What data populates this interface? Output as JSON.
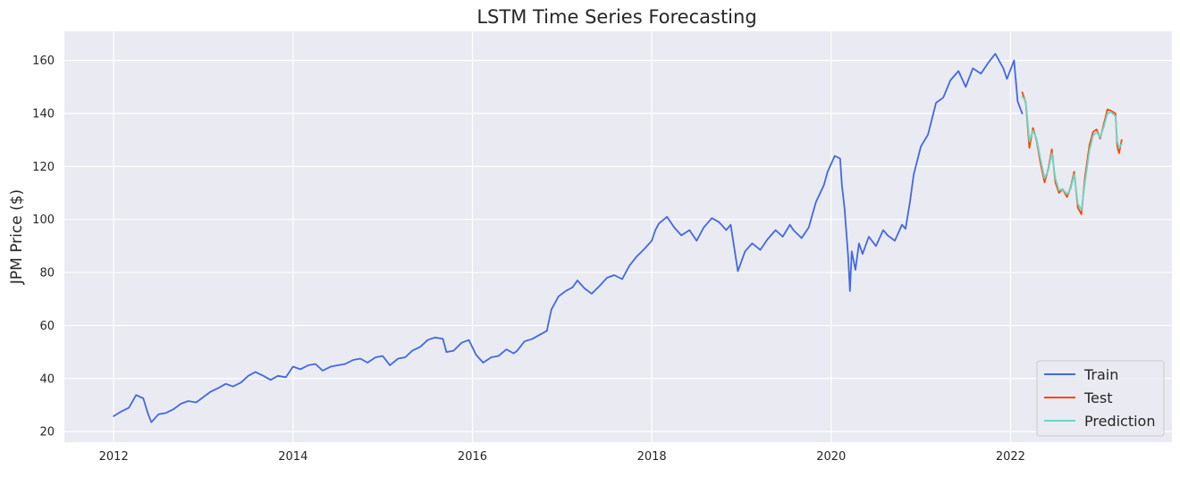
{
  "chart_data": {
    "type": "line",
    "title": "LSTM Time Series Forecasting",
    "xlabel": "",
    "ylabel": "JPM Price ($)",
    "xlim": [
      2011.45,
      2023.8
    ],
    "ylim": [
      16,
      171
    ],
    "x_ticks": [
      2012,
      2014,
      2016,
      2018,
      2020,
      2022
    ],
    "x_tick_labels": [
      "2012",
      "2014",
      "2016",
      "2018",
      "2020",
      "2022"
    ],
    "y_ticks": [
      20,
      40,
      60,
      80,
      100,
      120,
      140,
      160
    ],
    "y_tick_labels": [
      "20",
      "40",
      "60",
      "80",
      "100",
      "120",
      "140",
      "160"
    ],
    "grid": true,
    "legend_position": "lower-right",
    "series": [
      {
        "name": "Train",
        "color": "#4169e1",
        "points": [
          [
            2012.0,
            25.8
          ],
          [
            2012.08,
            27.5
          ],
          [
            2012.17,
            29.0
          ],
          [
            2012.25,
            33.8
          ],
          [
            2012.33,
            32.5
          ],
          [
            2012.38,
            27.0
          ],
          [
            2012.42,
            23.5
          ],
          [
            2012.5,
            26.5
          ],
          [
            2012.58,
            27.0
          ],
          [
            2012.67,
            28.5
          ],
          [
            2012.75,
            30.5
          ],
          [
            2012.83,
            31.5
          ],
          [
            2012.92,
            31.0
          ],
          [
            2013.0,
            33.0
          ],
          [
            2013.08,
            35.0
          ],
          [
            2013.17,
            36.5
          ],
          [
            2013.25,
            38.0
          ],
          [
            2013.33,
            37.0
          ],
          [
            2013.42,
            38.5
          ],
          [
            2013.5,
            41.0
          ],
          [
            2013.58,
            42.5
          ],
          [
            2013.67,
            41.0
          ],
          [
            2013.75,
            39.5
          ],
          [
            2013.83,
            41.0
          ],
          [
            2013.92,
            40.5
          ],
          [
            2014.0,
            44.5
          ],
          [
            2014.08,
            43.5
          ],
          [
            2014.17,
            45.0
          ],
          [
            2014.25,
            45.5
          ],
          [
            2014.33,
            43.0
          ],
          [
            2014.42,
            44.5
          ],
          [
            2014.5,
            45.0
          ],
          [
            2014.58,
            45.5
          ],
          [
            2014.67,
            47.0
          ],
          [
            2014.75,
            47.5
          ],
          [
            2014.83,
            46.0
          ],
          [
            2014.92,
            48.0
          ],
          [
            2015.0,
            48.5
          ],
          [
            2015.08,
            45.0
          ],
          [
            2015.17,
            47.5
          ],
          [
            2015.25,
            48.0
          ],
          [
            2015.33,
            50.5
          ],
          [
            2015.42,
            52.0
          ],
          [
            2015.5,
            54.5
          ],
          [
            2015.58,
            55.5
          ],
          [
            2015.67,
            55.0
          ],
          [
            2015.71,
            50.0
          ],
          [
            2015.79,
            50.5
          ],
          [
            2015.88,
            53.5
          ],
          [
            2015.96,
            54.5
          ],
          [
            2016.04,
            49.0
          ],
          [
            2016.12,
            46.0
          ],
          [
            2016.21,
            48.0
          ],
          [
            2016.29,
            48.5
          ],
          [
            2016.38,
            51.0
          ],
          [
            2016.46,
            49.5
          ],
          [
            2016.5,
            50.5
          ],
          [
            2016.58,
            54.0
          ],
          [
            2016.67,
            55.0
          ],
          [
            2016.75,
            56.5
          ],
          [
            2016.83,
            58.0
          ],
          [
            2016.88,
            66.0
          ],
          [
            2016.96,
            71.0
          ],
          [
            2017.04,
            73.0
          ],
          [
            2017.12,
            74.5
          ],
          [
            2017.17,
            77.0
          ],
          [
            2017.25,
            74.0
          ],
          [
            2017.33,
            72.0
          ],
          [
            2017.42,
            75.0
          ],
          [
            2017.5,
            78.0
          ],
          [
            2017.58,
            79.0
          ],
          [
            2017.67,
            77.5
          ],
          [
            2017.75,
            82.5
          ],
          [
            2017.83,
            86.0
          ],
          [
            2017.92,
            89.0
          ],
          [
            2018.0,
            92.0
          ],
          [
            2018.04,
            96.0
          ],
          [
            2018.08,
            98.5
          ],
          [
            2018.17,
            101.0
          ],
          [
            2018.25,
            97.0
          ],
          [
            2018.33,
            94.0
          ],
          [
            2018.42,
            96.0
          ],
          [
            2018.5,
            92.0
          ],
          [
            2018.58,
            97.0
          ],
          [
            2018.67,
            100.5
          ],
          [
            2018.75,
            99.0
          ],
          [
            2018.83,
            96.0
          ],
          [
            2018.88,
            98.0
          ],
          [
            2018.96,
            80.5
          ],
          [
            2019.04,
            88.0
          ],
          [
            2019.12,
            91.0
          ],
          [
            2019.21,
            88.5
          ],
          [
            2019.29,
            92.5
          ],
          [
            2019.38,
            96.0
          ],
          [
            2019.46,
            93.5
          ],
          [
            2019.54,
            98.0
          ],
          [
            2019.58,
            96.0
          ],
          [
            2019.67,
            93.0
          ],
          [
            2019.75,
            97.0
          ],
          [
            2019.83,
            106.5
          ],
          [
            2019.92,
            113.0
          ],
          [
            2019.96,
            118.0
          ],
          [
            2020.04,
            124.0
          ],
          [
            2020.1,
            123.0
          ],
          [
            2020.12,
            113.0
          ],
          [
            2020.15,
            104.0
          ],
          [
            2020.19,
            86.0
          ],
          [
            2020.21,
            73.0
          ],
          [
            2020.23,
            88.0
          ],
          [
            2020.27,
            81.0
          ],
          [
            2020.31,
            91.0
          ],
          [
            2020.35,
            87.0
          ],
          [
            2020.42,
            93.5
          ],
          [
            2020.5,
            90.0
          ],
          [
            2020.58,
            96.0
          ],
          [
            2020.63,
            94.0
          ],
          [
            2020.71,
            92.0
          ],
          [
            2020.79,
            98.0
          ],
          [
            2020.83,
            96.5
          ],
          [
            2020.88,
            107.0
          ],
          [
            2020.92,
            117.0
          ],
          [
            2021.0,
            127.5
          ],
          [
            2021.08,
            132.0
          ],
          [
            2021.17,
            144.0
          ],
          [
            2021.25,
            146.0
          ],
          [
            2021.33,
            152.5
          ],
          [
            2021.42,
            156.0
          ],
          [
            2021.5,
            150.0
          ],
          [
            2021.58,
            157.0
          ],
          [
            2021.67,
            155.0
          ],
          [
            2021.75,
            159.0
          ],
          [
            2021.83,
            162.5
          ],
          [
            2021.92,
            157.0
          ],
          [
            2021.96,
            153.0
          ],
          [
            2022.04,
            160.0
          ],
          [
            2022.08,
            144.5
          ],
          [
            2022.13,
            140.0
          ]
        ]
      },
      {
        "name": "Test",
        "color": "#ff4500",
        "points": [
          [
            2022.13,
            148.0
          ],
          [
            2022.17,
            144.0
          ],
          [
            2022.21,
            127.0
          ],
          [
            2022.25,
            134.5
          ],
          [
            2022.29,
            130.0
          ],
          [
            2022.33,
            122.0
          ],
          [
            2022.38,
            114.0
          ],
          [
            2022.42,
            119.0
          ],
          [
            2022.46,
            126.5
          ],
          [
            2022.5,
            114.0
          ],
          [
            2022.54,
            110.0
          ],
          [
            2022.58,
            111.5
          ],
          [
            2022.63,
            108.5
          ],
          [
            2022.67,
            112.0
          ],
          [
            2022.71,
            118.0
          ],
          [
            2022.75,
            104.5
          ],
          [
            2022.79,
            102.0
          ],
          [
            2022.83,
            116.0
          ],
          [
            2022.88,
            128.0
          ],
          [
            2022.92,
            133.0
          ],
          [
            2022.96,
            134.0
          ],
          [
            2023.0,
            130.5
          ],
          [
            2023.04,
            136.0
          ],
          [
            2023.08,
            141.5
          ],
          [
            2023.12,
            141.0
          ],
          [
            2023.17,
            140.0
          ],
          [
            2023.19,
            127.5
          ],
          [
            2023.21,
            125.0
          ],
          [
            2023.24,
            130.0
          ]
        ]
      },
      {
        "name": "Prediction",
        "color": "#66d9c9",
        "points": [
          [
            2022.13,
            146.5
          ],
          [
            2022.17,
            144.5
          ],
          [
            2022.21,
            129.5
          ],
          [
            2022.25,
            133.5
          ],
          [
            2022.29,
            130.5
          ],
          [
            2022.33,
            123.5
          ],
          [
            2022.38,
            115.5
          ],
          [
            2022.42,
            118.5
          ],
          [
            2022.46,
            125.0
          ],
          [
            2022.5,
            115.5
          ],
          [
            2022.54,
            111.0
          ],
          [
            2022.58,
            111.5
          ],
          [
            2022.63,
            109.5
          ],
          [
            2022.67,
            111.5
          ],
          [
            2022.71,
            117.0
          ],
          [
            2022.75,
            106.0
          ],
          [
            2022.79,
            103.5
          ],
          [
            2022.83,
            114.0
          ],
          [
            2022.88,
            126.0
          ],
          [
            2022.92,
            131.5
          ],
          [
            2022.96,
            133.0
          ],
          [
            2023.0,
            131.0
          ],
          [
            2023.04,
            135.0
          ],
          [
            2023.08,
            140.0
          ],
          [
            2023.12,
            140.5
          ],
          [
            2023.17,
            139.0
          ],
          [
            2023.19,
            129.5
          ],
          [
            2023.21,
            127.0
          ],
          [
            2023.24,
            128.5
          ]
        ]
      }
    ]
  }
}
